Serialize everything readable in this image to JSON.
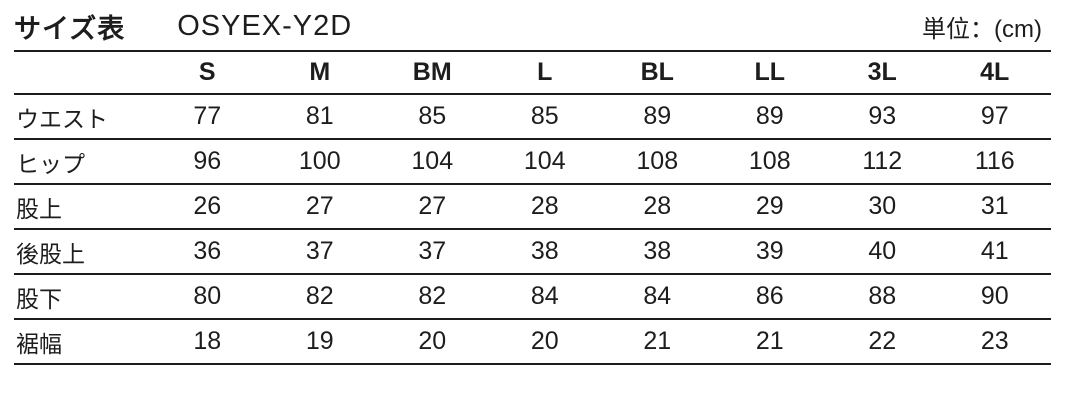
{
  "header": {
    "title": "サイズ表",
    "product_code": "OSYEX-Y2D",
    "unit_label": "単位：(cm)"
  },
  "chart_data": {
    "type": "table",
    "title": "サイズ表 OSYEX-Y2D",
    "unit": "cm",
    "columns": [
      "S",
      "M",
      "BM",
      "L",
      "BL",
      "LL",
      "3L",
      "4L"
    ],
    "rows": [
      {
        "label": "ウエスト",
        "values": [
          77,
          81,
          85,
          85,
          89,
          89,
          93,
          97
        ]
      },
      {
        "label": "ヒップ",
        "values": [
          96,
          100,
          104,
          104,
          108,
          108,
          112,
          116
        ]
      },
      {
        "label": "股上",
        "values": [
          26,
          27,
          27,
          28,
          28,
          29,
          30,
          31
        ]
      },
      {
        "label": "後股上",
        "values": [
          36,
          37,
          37,
          38,
          38,
          39,
          40,
          41
        ]
      },
      {
        "label": "股下",
        "values": [
          80,
          82,
          82,
          84,
          84,
          86,
          88,
          90
        ]
      },
      {
        "label": "裾幅",
        "values": [
          18,
          19,
          20,
          20,
          21,
          21,
          22,
          23
        ]
      }
    ]
  },
  "colors": {
    "text": "#1d1d1d",
    "line": "#1c1c1c",
    "background": "#ffffff"
  }
}
